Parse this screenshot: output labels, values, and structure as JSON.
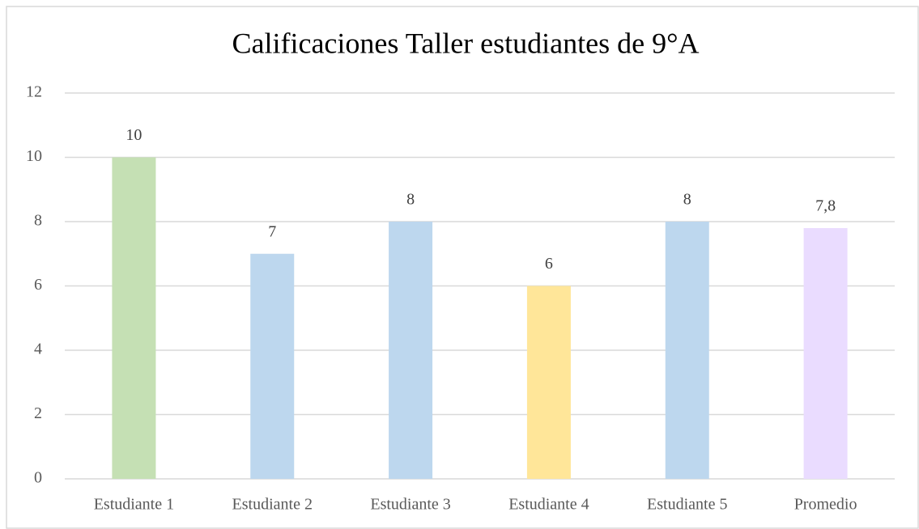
{
  "chart_data": {
    "type": "bar",
    "title": "Calificaciones  Taller estudiantes  de 9°A",
    "categories": [
      "Estudiante 1",
      "Estudiante 2",
      "Estudiante 3",
      "Estudiante 4",
      "Estudiante 5",
      "Promedio"
    ],
    "values": [
      10,
      7,
      8,
      6,
      8,
      7.8
    ],
    "value_labels": [
      "10",
      "7",
      "8",
      "6",
      "8",
      "7,8"
    ],
    "colors": [
      "#c5e0b4",
      "#bdd7ee",
      "#bdd7ee",
      "#ffe699",
      "#bdd7ee",
      "#eadcff"
    ],
    "ylim": [
      0,
      12
    ],
    "yticks": [
      0,
      2,
      4,
      6,
      8,
      10,
      12
    ],
    "grid": true
  }
}
